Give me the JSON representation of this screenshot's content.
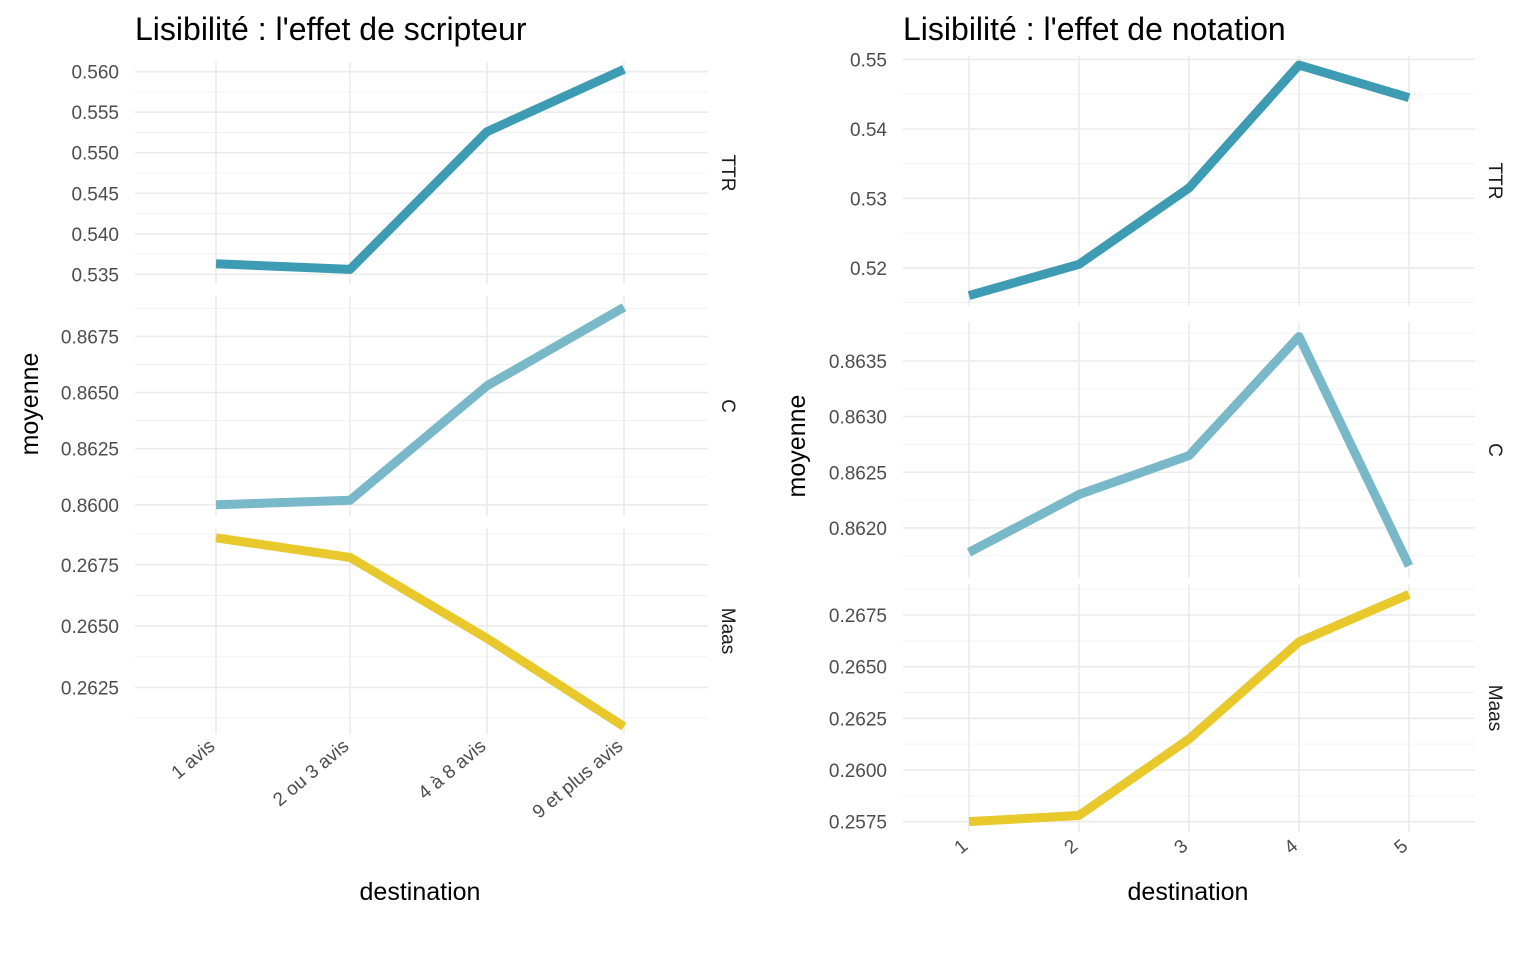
{
  "chart_data": [
    {
      "type": "line",
      "title": "Lisibilité : l'effet de scripteur",
      "xlabel": "destination",
      "ylabel": "moyenne",
      "categories": [
        "1 avis",
        "2 ou 3 avis",
        "4 à 8 avis",
        "9 et plus avis"
      ],
      "grid": true,
      "facets": [
        {
          "name": "TTR",
          "color": "#3d9bb3",
          "values": [
            0.5363,
            0.5356,
            0.5526,
            0.5603
          ],
          "yticks": [
            "0.535",
            "0.540",
            "0.545",
            "0.550",
            "0.555",
            "0.560"
          ],
          "ylim": [
            0.5338,
            0.5612
          ]
        },
        {
          "name": "C",
          "color": "#78b8c9",
          "values": [
            0.86,
            0.8602,
            0.8653,
            0.8688
          ],
          "yticks": [
            "0.8600",
            "0.8625",
            "0.8650",
            "0.8675"
          ],
          "ylim": [
            0.8595,
            0.8693
          ]
        },
        {
          "name": "Maas",
          "color": "#e8c82b",
          "values": [
            0.2686,
            0.2678,
            0.2645,
            0.2609
          ],
          "yticks": [
            "0.2625",
            "0.2650",
            "0.2675"
          ],
          "ylim": [
            0.2606,
            0.269
          ]
        }
      ]
    },
    {
      "type": "line",
      "title": "Lisibilité : l'effet de notation",
      "xlabel": "destination",
      "ylabel": "moyenne",
      "categories": [
        "1",
        "2",
        "3",
        "4",
        "5"
      ],
      "grid": true,
      "facets": [
        {
          "name": "TTR",
          "color": "#3d9bb3",
          "values": [
            0.516,
            0.5205,
            0.5315,
            0.5492,
            0.5445
          ],
          "yticks": [
            "0.52",
            "0.53",
            "0.54",
            "0.55"
          ],
          "ylim": [
            0.5145,
            0.5505
          ]
        },
        {
          "name": "C",
          "color": "#78b8c9",
          "values": [
            0.86178,
            0.8623,
            0.86265,
            0.86372,
            0.86166
          ],
          "yticks": [
            "0.8620",
            "0.8625",
            "0.8630",
            "0.8635"
          ],
          "ylim": [
            0.86155,
            0.86385
          ]
        },
        {
          "name": "Maas",
          "color": "#e8c82b",
          "values": [
            0.2575,
            0.2578,
            0.2615,
            0.2662,
            0.2685
          ],
          "yticks": [
            "0.2575",
            "0.2600",
            "0.2625",
            "0.2650",
            "0.2675"
          ],
          "ylim": [
            0.257,
            0.269
          ]
        }
      ]
    }
  ]
}
